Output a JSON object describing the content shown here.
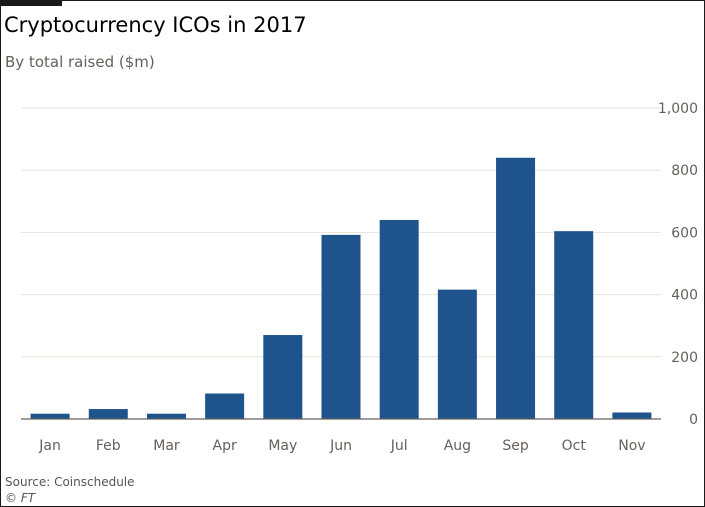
{
  "header": {
    "title": "Cryptocurrency ICOs in 2017",
    "subtitle": "By total raised ($m)"
  },
  "footer": {
    "source": "Source: Coinschedule",
    "credit": "© FT"
  },
  "colors": {
    "bar": "#1f538b",
    "gridline": "#e6e2de",
    "baseline": "#66605c",
    "tick_text": "#66605c"
  },
  "chart_data": {
    "type": "bar",
    "title": "Cryptocurrency ICOs in 2017",
    "subtitle": "By total raised ($m)",
    "xlabel": "",
    "ylabel": "",
    "categories": [
      "Jan",
      "Feb",
      "Mar",
      "Apr",
      "May",
      "Jun",
      "Jul",
      "Aug",
      "Sep",
      "Oct",
      "Nov"
    ],
    "values": [
      17,
      32,
      17,
      82,
      270,
      592,
      640,
      416,
      840,
      604,
      21
    ],
    "ylim": [
      0,
      1000
    ],
    "yticks": [
      0,
      200,
      400,
      600,
      800,
      1000
    ],
    "ytick_labels": [
      "0",
      "200",
      "400",
      "600",
      "800",
      "1,000"
    ],
    "y_axis_side": "right",
    "grid": true,
    "legend": "none"
  }
}
